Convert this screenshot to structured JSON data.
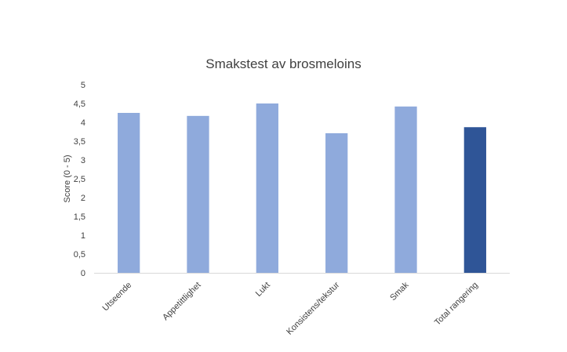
{
  "chart_data": {
    "type": "bar",
    "title": "Smakstest av brosmeloins",
    "xlabel": "",
    "ylabel": "Score (0 - 5)",
    "ylim": [
      0,
      5
    ],
    "yticks": [
      "0",
      "0,5",
      "1",
      "1,5",
      "2",
      "2,5",
      "3",
      "3,5",
      "4",
      "4,5",
      "5"
    ],
    "grid": false,
    "legend": "none",
    "categories": [
      "Utseende",
      "Appetittlighet",
      "Lukt",
      "Konsistens/tekstur",
      "Smak",
      "Total rangering"
    ],
    "values": [
      4.25,
      4.17,
      4.5,
      3.71,
      4.42,
      3.87
    ],
    "colors": [
      "#8faadc",
      "#8faadc",
      "#8faadc",
      "#8faadc",
      "#8faadc",
      "#2f5597"
    ]
  }
}
